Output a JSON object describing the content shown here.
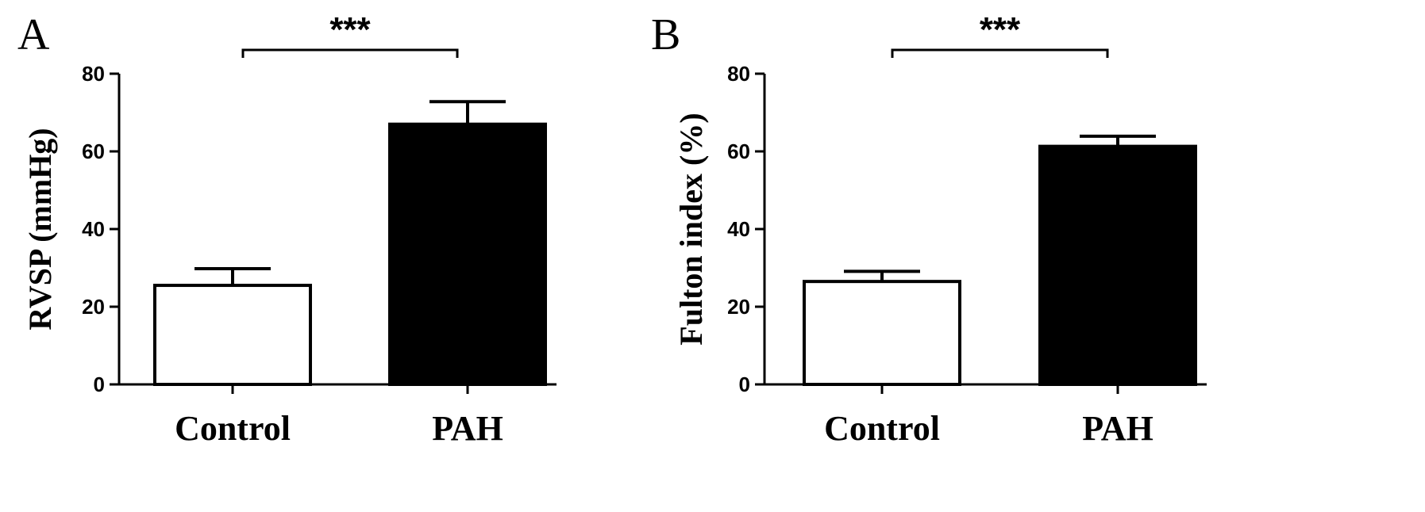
{
  "chart_data": [
    {
      "type": "bar",
      "panel": "A",
      "categories": [
        "Control",
        "PAH"
      ],
      "values": [
        25.5,
        67
      ],
      "errors": [
        4.3,
        5.8
      ],
      "bar_colors": [
        "#ffffff",
        "#000000"
      ],
      "ylabel": "RVSP (mmHg)",
      "ylim": [
        0,
        80
      ],
      "yticks": [
        0,
        20,
        40,
        60,
        80
      ],
      "significance": "***"
    },
    {
      "type": "bar",
      "panel": "B",
      "categories": [
        "Control",
        "PAH"
      ],
      "values": [
        26.5,
        61.3
      ],
      "errors": [
        2.6,
        2.6
      ],
      "bar_colors": [
        "#ffffff",
        "#000000"
      ],
      "ylabel": "Fulton index (%)",
      "ylim": [
        0,
        80
      ],
      "yticks": [
        0,
        20,
        40,
        60,
        80
      ],
      "significance": "***"
    }
  ]
}
